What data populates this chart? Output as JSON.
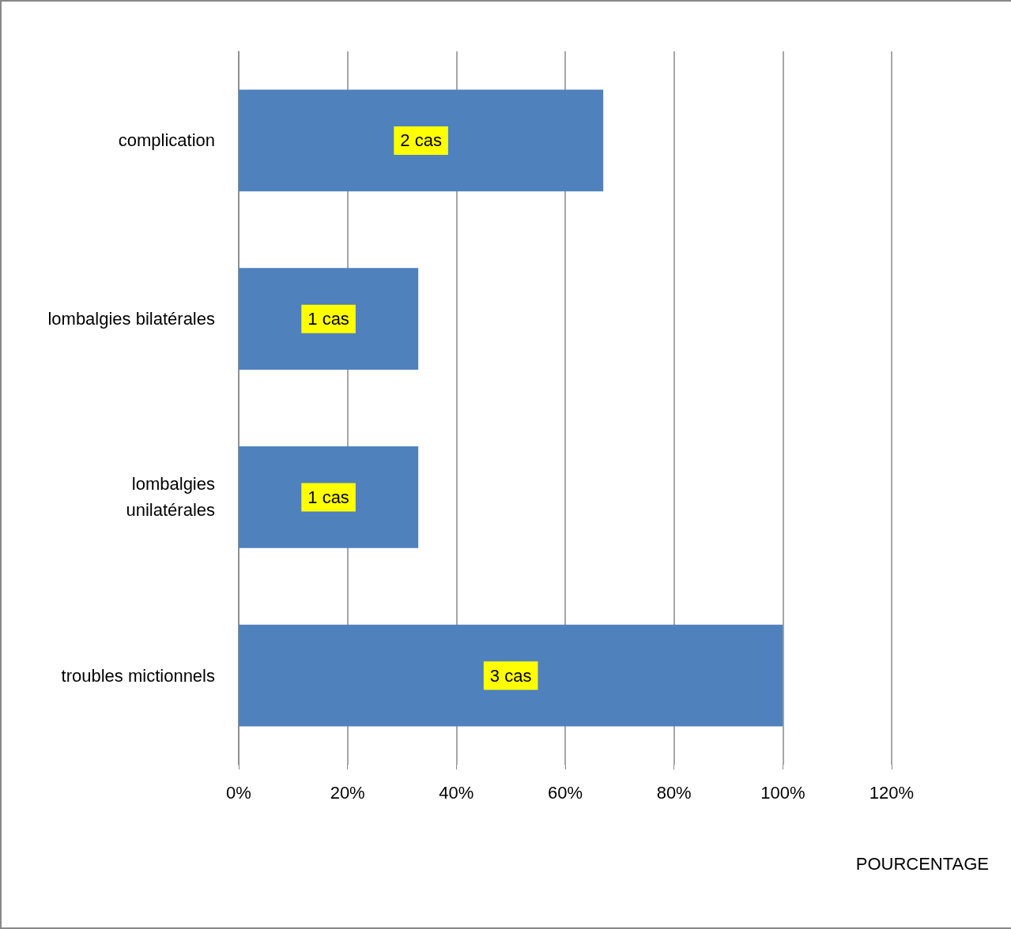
{
  "chart_data": {
    "type": "bar",
    "orientation": "horizontal",
    "xlabel": "POURCENTAGE",
    "categories": [
      "complication",
      "lombalgies bilatérales",
      "lombalgies\nunilatérales",
      "troubles mictionnels"
    ],
    "values": [
      67,
      33,
      33,
      100
    ],
    "annotations": [
      "2 cas",
      "1 cas",
      "1 cas",
      "3 cas"
    ],
    "color": "#4f81bd",
    "xlim": [
      0,
      120
    ],
    "xticks": [
      {
        "value": 0,
        "label": "0%"
      },
      {
        "value": 20,
        "label": "20%"
      },
      {
        "value": 40,
        "label": "40%"
      },
      {
        "value": 60,
        "label": "60%"
      },
      {
        "value": 80,
        "label": "80%"
      },
      {
        "value": 100,
        "label": "100%"
      },
      {
        "value": 120,
        "label": "120%"
      }
    ],
    "grid": "x"
  }
}
